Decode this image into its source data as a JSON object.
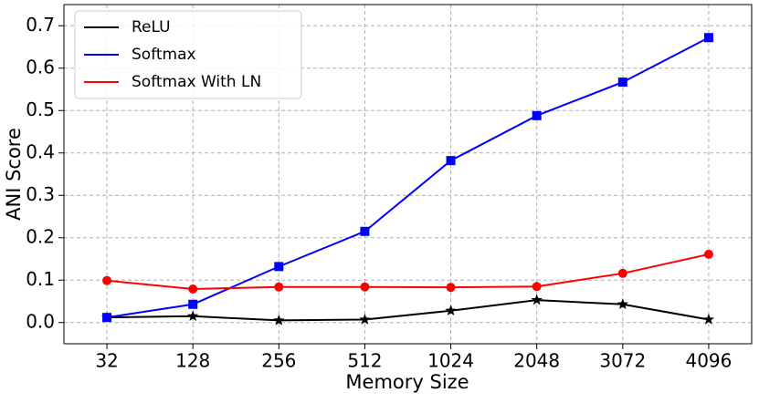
{
  "chart_data": {
    "type": "line",
    "x_label": "Memory Size",
    "y_label": "ANI Score",
    "categories": [
      "32",
      "128",
      "256",
      "512",
      "1024",
      "2048",
      "3072",
      "4096"
    ],
    "series": [
      {
        "name": "ReLU",
        "color": "#000000",
        "marker": "star",
        "values": [
          0.012,
          0.015,
          0.005,
          0.007,
          0.028,
          0.053,
          0.043,
          0.007
        ]
      },
      {
        "name": "Softmax",
        "color": "#0000ff",
        "marker": "square",
        "values": [
          0.012,
          0.043,
          0.132,
          0.215,
          0.382,
          0.488,
          0.567,
          0.672
        ]
      },
      {
        "name": "Softmax With LN",
        "color": "#ff0000",
        "marker": "circle",
        "values": [
          0.099,
          0.079,
          0.084,
          0.084,
          0.083,
          0.085,
          0.116,
          0.161
        ]
      }
    ],
    "ylim": [
      -0.05,
      0.75
    ],
    "yticks": [
      {
        "value": 0,
        "label": "0.0"
      },
      0.1,
      0.2,
      0.3,
      0.4,
      0.5,
      0.6,
      0.7
    ],
    "grid": true,
    "legend": "upper left"
  }
}
